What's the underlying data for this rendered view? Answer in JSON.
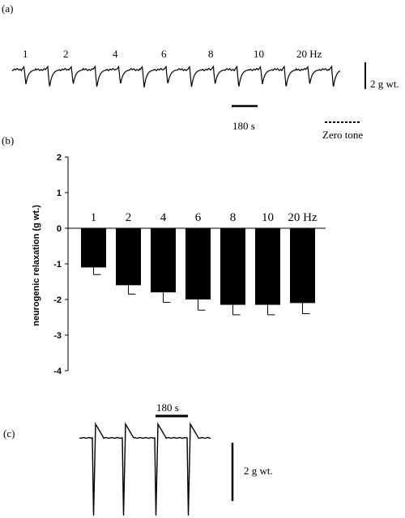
{
  "panels": {
    "a": {
      "label": "(a)",
      "freq_labels": [
        "1",
        "2",
        "4",
        "6",
        "8",
        "10",
        "20 Hz"
      ],
      "scale_label": "2 g wt.",
      "time_label": "180 s",
      "zero_label": "Zero tone"
    },
    "b": {
      "label": "(b)"
    },
    "c": {
      "label": "(c)",
      "time_label": "180 s",
      "scale_label": "2 g wt."
    }
  },
  "chart_data": {
    "type": "bar",
    "categories": [
      "1",
      "2",
      "4",
      "6",
      "8",
      "10",
      "20 Hz"
    ],
    "values": [
      -1.1,
      -1.6,
      -1.8,
      -2.0,
      -2.15,
      -2.15,
      -2.1
    ],
    "errors": [
      0.2,
      0.25,
      0.28,
      0.3,
      0.28,
      0.28,
      0.3
    ],
    "xlabel": "",
    "ylabel": "neurogenic relaxation (g wt.)",
    "ylim": [
      -4,
      2
    ],
    "yticks": [
      2,
      1,
      0,
      -1,
      -2,
      -3,
      -4
    ],
    "bar_color": "#000000",
    "grid": false
  }
}
